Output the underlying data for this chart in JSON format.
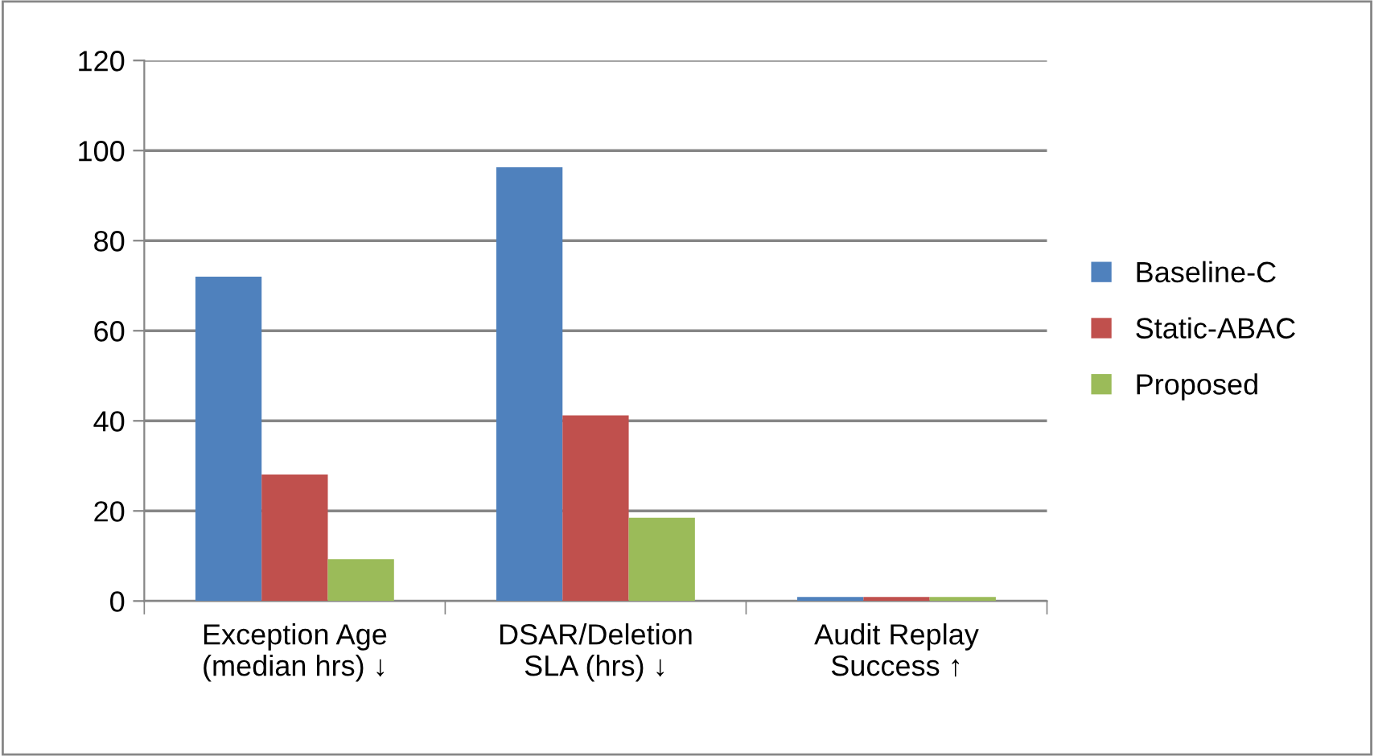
{
  "chart_data": {
    "type": "bar",
    "categories": [
      "Exception Age\n(median hrs) ↓",
      "DSAR/Deletion\nSLA (hrs) ↓",
      "Audit Replay\nSuccess ↑"
    ],
    "series": [
      {
        "name": "Baseline-C",
        "color": "#4f81bd",
        "values": [
          72,
          96.3,
          0.9
        ]
      },
      {
        "name": "Static-ABAC",
        "color": "#c0504d",
        "values": [
          28.1,
          41.2,
          0.9
        ]
      },
      {
        "name": "Proposed",
        "color": "#9bbb59",
        "values": [
          9.3,
          18.5,
          0.9
        ]
      }
    ],
    "ylim": [
      0,
      120
    ],
    "yticks": [
      0,
      20,
      40,
      60,
      80,
      100,
      120
    ],
    "grid": "y",
    "legend": "right"
  }
}
